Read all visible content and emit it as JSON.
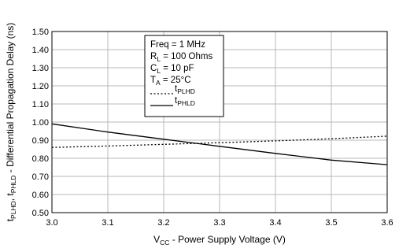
{
  "chart_data": {
    "type": "line",
    "xlabel": {
      "main": "V",
      "sub": "CC",
      "rest": " - Power Supply Voltage (V)"
    },
    "ylabel": {
      "parts": [
        {
          "t": "t",
          "sub": false
        },
        {
          "t": "PLHD",
          "sub": true
        },
        {
          "t": ", t",
          "sub": false
        },
        {
          "t": "PHLD",
          "sub": true
        },
        {
          "t": " - Differential Propagation Delay (ns)",
          "sub": false
        }
      ]
    },
    "xlim": [
      3.0,
      3.6
    ],
    "ylim": [
      0.5,
      1.5
    ],
    "x_ticks": [
      "3.0",
      "3.1",
      "3.2",
      "3.3",
      "3.4",
      "3.5",
      "3.6"
    ],
    "y_ticks": [
      "0.50",
      "0.60",
      "0.70",
      "0.80",
      "0.90",
      "1.00",
      "1.10",
      "1.20",
      "1.30",
      "1.40",
      "1.50"
    ],
    "grid": true,
    "conditions": [
      {
        "main": "Freq = 1 MHz",
        "sub": ""
      },
      {
        "main": "R",
        "sub": "L",
        "rest": "  = 100 Ohms"
      },
      {
        "main": "C",
        "sub": "L",
        "rest": "  = 10 pF"
      },
      {
        "main": "T",
        "sub": "A",
        "rest": "  = 25°C"
      }
    ],
    "series": [
      {
        "name": "t",
        "name_sub": "PLHD",
        "style": "dotted",
        "x": [
          3.0,
          3.1,
          3.2,
          3.3,
          3.4,
          3.5,
          3.6
        ],
        "y": [
          0.86,
          0.868,
          0.877,
          0.886,
          0.896,
          0.908,
          0.922
        ]
      },
      {
        "name": "t",
        "name_sub": "PHLD",
        "style": "solid",
        "x": [
          3.0,
          3.1,
          3.2,
          3.3,
          3.4,
          3.5,
          3.6
        ],
        "y": [
          0.99,
          0.945,
          0.905,
          0.866,
          0.827,
          0.79,
          0.765
        ]
      }
    ]
  }
}
